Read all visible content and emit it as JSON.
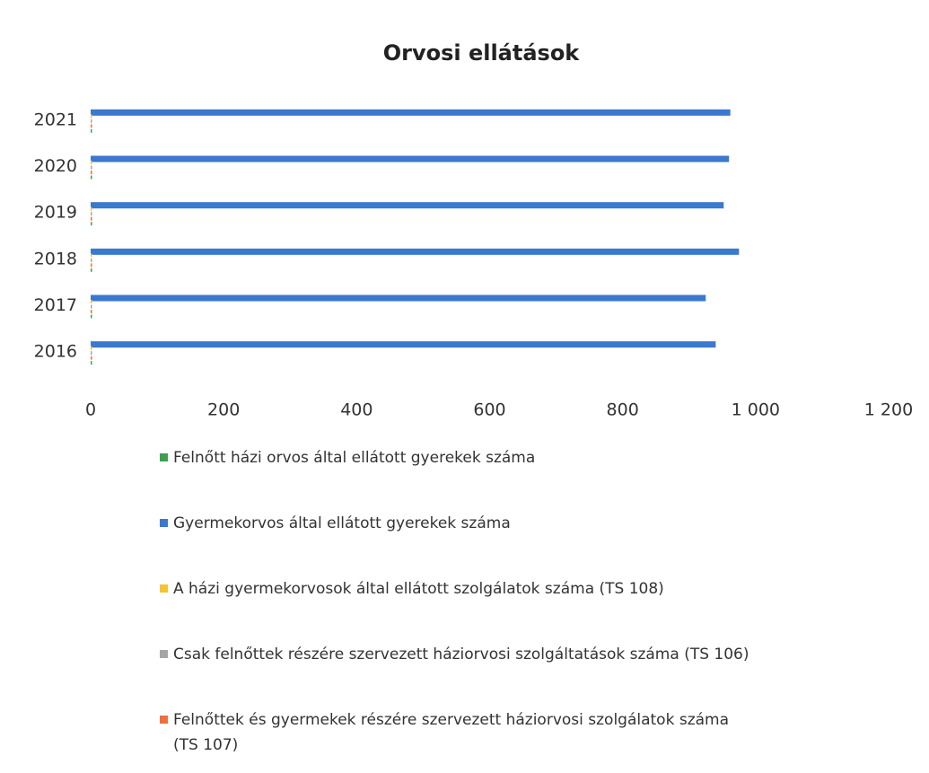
{
  "chart_data": {
    "type": "bar",
    "orientation": "horizontal",
    "title": "Orvosi ellátások",
    "categories": [
      "2016",
      "2017",
      "2018",
      "2019",
      "2020",
      "2021"
    ],
    "series": [
      {
        "name": "Felnőtt házi orvos által ellátott gyerekek száma",
        "color": "#3f9f4f",
        "values": [
          0,
          0,
          0,
          0,
          0,
          0
        ]
      },
      {
        "name": "Gyermekorvos által ellátott gyerekek száma",
        "color": "#3b78cf",
        "values": [
          940,
          925,
          975,
          952,
          960,
          962
        ]
      },
      {
        "name": "A házi gyermekorvosok által ellátott szolgálatok száma (TS 108)",
        "color": "#f4c430",
        "values": [
          1,
          1,
          1,
          1,
          1,
          1
        ]
      },
      {
        "name": "Csak felnőttek részére szervezett háziorvosi szolgáltatások száma (TS 106)",
        "color": "#a6a6a6",
        "values": [
          1,
          1,
          1,
          1,
          1,
          1
        ]
      },
      {
        "name": "Felnőttek és gyermekek részére szervezett háziorvosi szolgálatok száma (TS 107)",
        "color": "#f0703a",
        "values": [
          1,
          1,
          1,
          1,
          1,
          1
        ]
      }
    ],
    "xlim": [
      0,
      1200
    ],
    "xticks": [
      0,
      200,
      400,
      600,
      800,
      {
        "value": 1000,
        "label": "1 000"
      },
      {
        "value": 1200,
        "label": "1 200"
      }
    ],
    "grid": false,
    "legend": "bottom"
  }
}
